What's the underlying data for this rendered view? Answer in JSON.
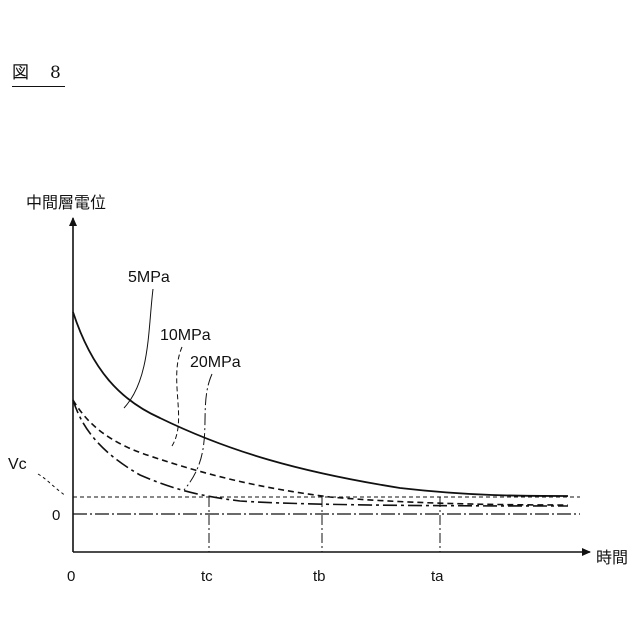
{
  "figure": {
    "label": "図　8"
  },
  "chart_data": {
    "type": "line",
    "title": "",
    "ylabel": "中間層電位",
    "xlabel": "時間",
    "x_ticks": [
      "0",
      "tc",
      "tb",
      "ta"
    ],
    "y_ticks": [
      "0"
    ],
    "threshold_label": "Vc",
    "ylim": [
      0,
      1
    ],
    "series": [
      {
        "name": "5MPa",
        "style": "solid",
        "start": 0.77,
        "reaches_vc_at": "ta"
      },
      {
        "name": "10MPa",
        "style": "dashed",
        "start": 0.43,
        "reaches_vc_at": "tb"
      },
      {
        "name": "20MPa",
        "style": "dash-dot",
        "start": 0.43,
        "reaches_vc_at": "tc"
      }
    ],
    "vc_level": 0.07,
    "grid": false,
    "legend": "labels with leader lines"
  },
  "colors": {
    "ink": "#111111"
  }
}
